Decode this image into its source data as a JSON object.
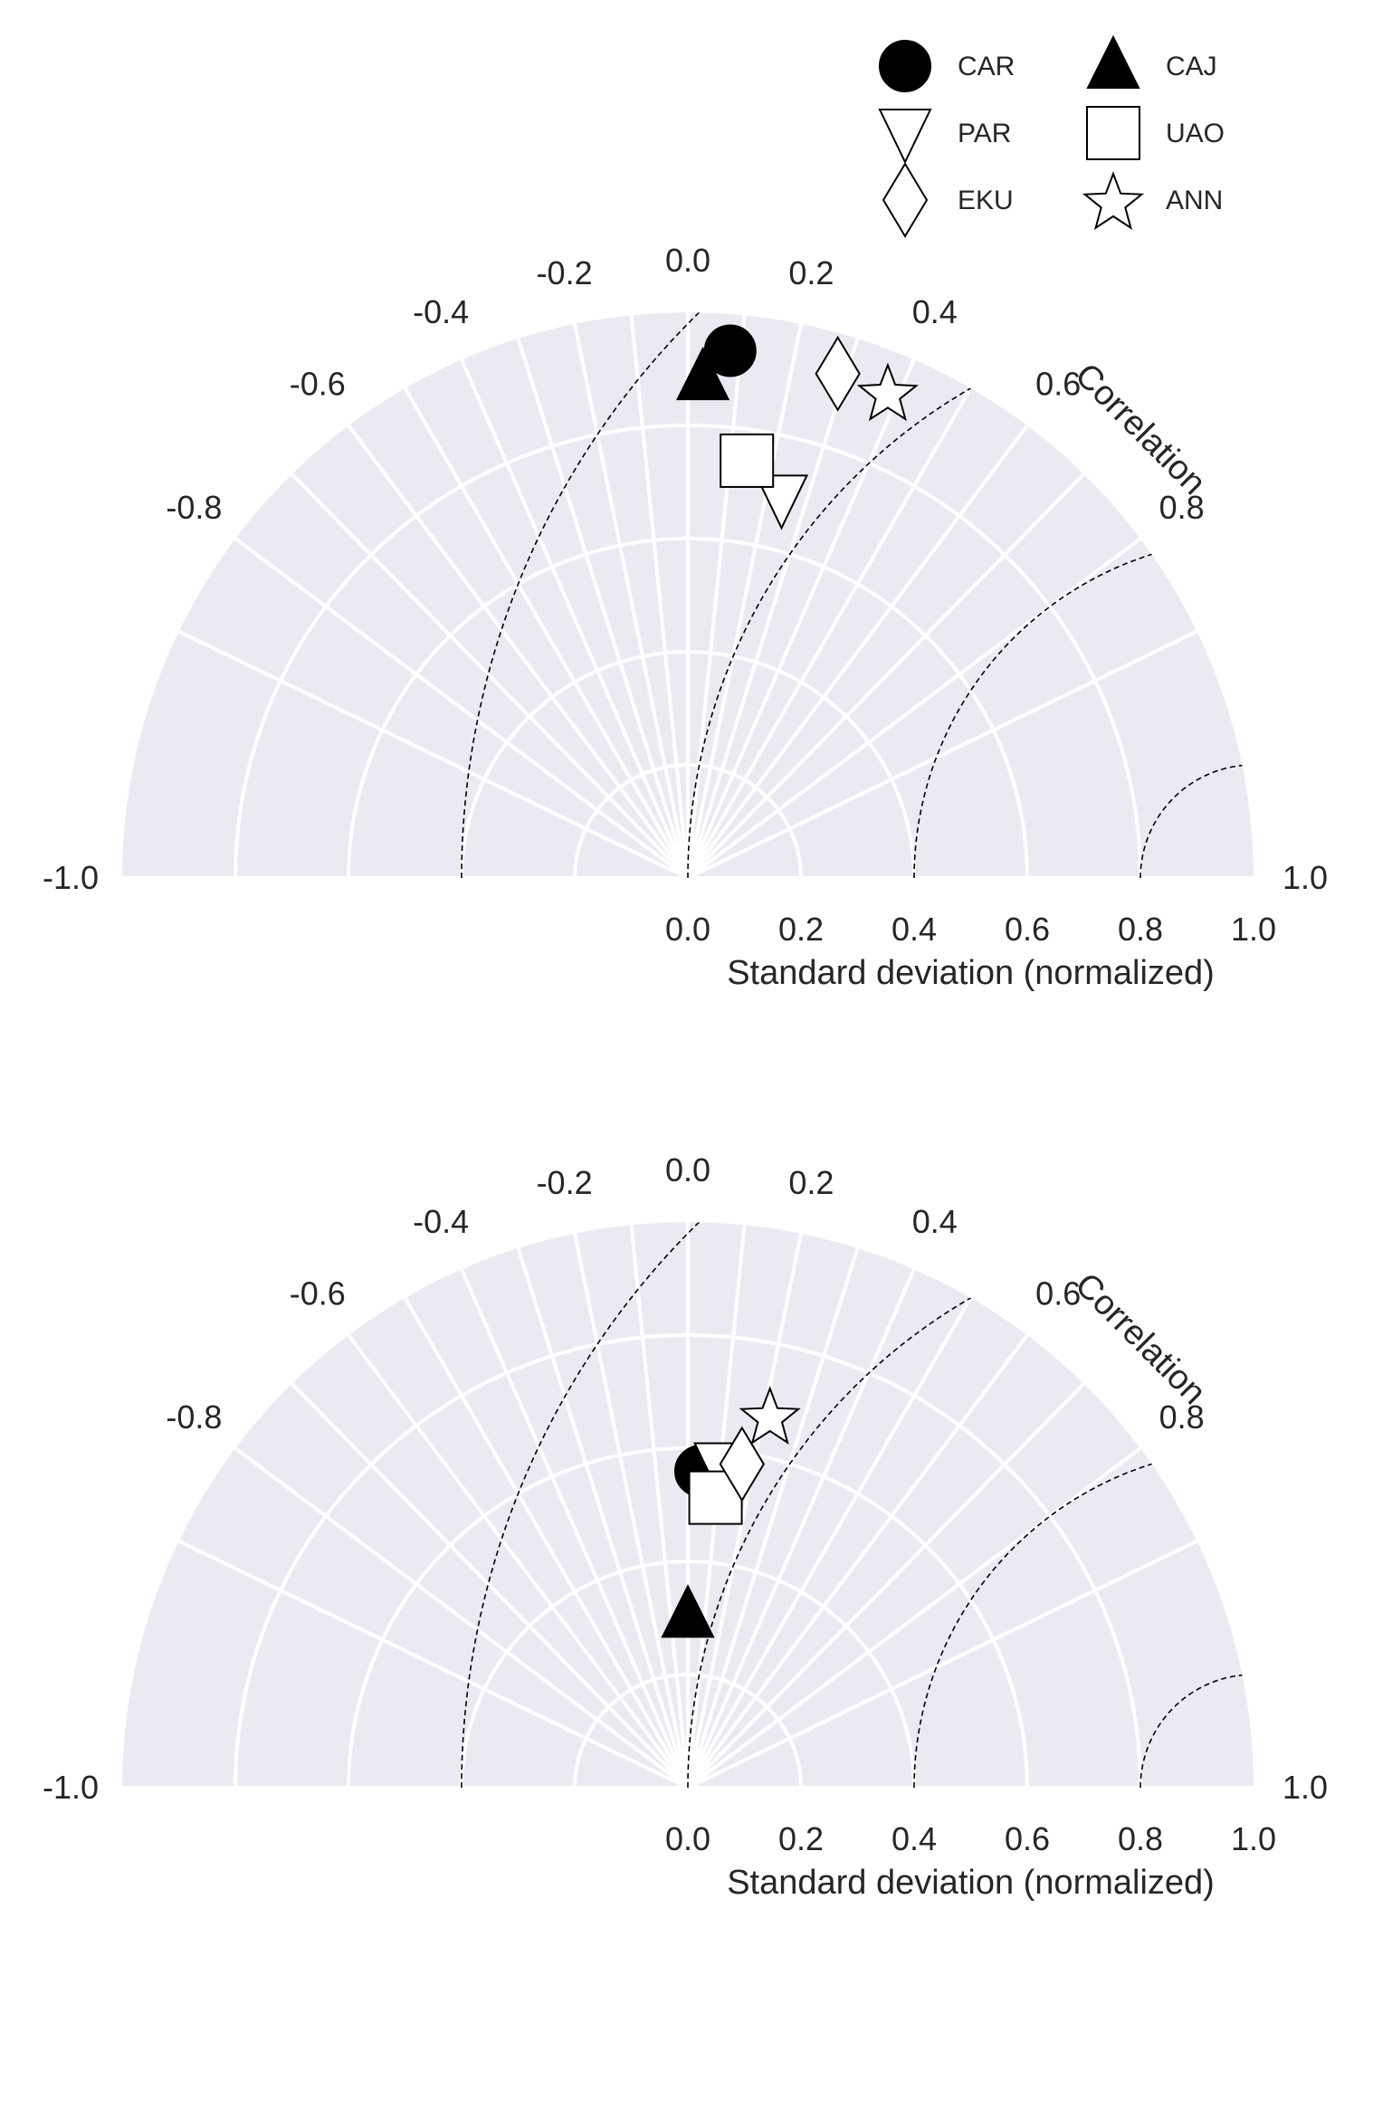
{
  "colors": {
    "plot_background": "#EAEAF2",
    "grid": "#FFFFFF",
    "rms_contours": "#000000",
    "marker_fill_filled": "#000000",
    "marker_fill_open": "#FFFFFF",
    "marker_edge": "#000000",
    "text": "#262626"
  },
  "legend": {
    "placement": "top-right",
    "items": [
      {
        "label": "CAR",
        "marker": "circle",
        "filled": true
      },
      {
        "label": "CAJ",
        "marker": "triangle-up",
        "filled": true
      },
      {
        "label": "PAR",
        "marker": "triangle-down",
        "filled": false
      },
      {
        "label": "UAO",
        "marker": "square",
        "filled": false
      },
      {
        "label": "EKU",
        "marker": "diamond",
        "filled": false
      },
      {
        "label": "ANN",
        "marker": "star",
        "filled": false
      }
    ]
  },
  "chart_data": [
    {
      "type": "taylor-diagram",
      "angular_axis_label": "Correlation",
      "radial_axis_label": "Standard deviation (normalized)",
      "radial_range": [
        0.0,
        1.0
      ],
      "radial_ticks": [
        "0.0",
        "0.2",
        "0.4",
        "0.6",
        "0.8",
        "1.0"
      ],
      "correlation_range": [
        -1.0,
        1.0
      ],
      "correlation_ticks": [
        "-1.0",
        "-0.8",
        "-0.6",
        "-0.4",
        "-0.2",
        "0.0",
        "0.2",
        "0.4",
        "0.6",
        "0.8",
        "1.0"
      ],
      "rms_contour_radii": [
        0.2,
        0.6,
        1.0,
        1.4
      ],
      "grid": true,
      "points": [
        {
          "name": "CAR",
          "r": 0.935,
          "corr": 0.08
        },
        {
          "name": "CAJ",
          "r": 0.885,
          "corr": 0.03
        },
        {
          "name": "PAR",
          "r": 0.69,
          "corr": 0.24
        },
        {
          "name": "UAO",
          "r": 0.745,
          "corr": 0.14
        },
        {
          "name": "EKU",
          "r": 0.93,
          "corr": 0.285
        },
        {
          "name": "ANN",
          "r": 0.93,
          "corr": 0.38
        }
      ]
    },
    {
      "type": "taylor-diagram",
      "angular_axis_label": "Correlation",
      "radial_axis_label": "Standard deviation (normalized)",
      "radial_range": [
        0.0,
        1.0
      ],
      "radial_ticks": [
        "0.0",
        "0.2",
        "0.4",
        "0.6",
        "0.8",
        "1.0"
      ],
      "correlation_range": [
        -1.0,
        1.0
      ],
      "correlation_ticks": [
        "-1.0",
        "-0.8",
        "-0.6",
        "-0.4",
        "-0.2",
        "0.0",
        "0.2",
        "0.4",
        "0.6",
        "0.8",
        "1.0"
      ],
      "rms_contour_radii": [
        0.2,
        0.6,
        1.0,
        1.4
      ],
      "grid": true,
      "points": [
        {
          "name": "CAR",
          "r": 0.56,
          "corr": 0.04
        },
        {
          "name": "CAJ",
          "r": 0.305,
          "corr": 0.0
        },
        {
          "name": "PAR",
          "r": 0.57,
          "corr": 0.1
        },
        {
          "name": "UAO",
          "r": 0.515,
          "corr": 0.095
        },
        {
          "name": "EKU",
          "r": 0.58,
          "corr": 0.165
        },
        {
          "name": "ANN",
          "r": 0.675,
          "corr": 0.215
        }
      ]
    }
  ]
}
